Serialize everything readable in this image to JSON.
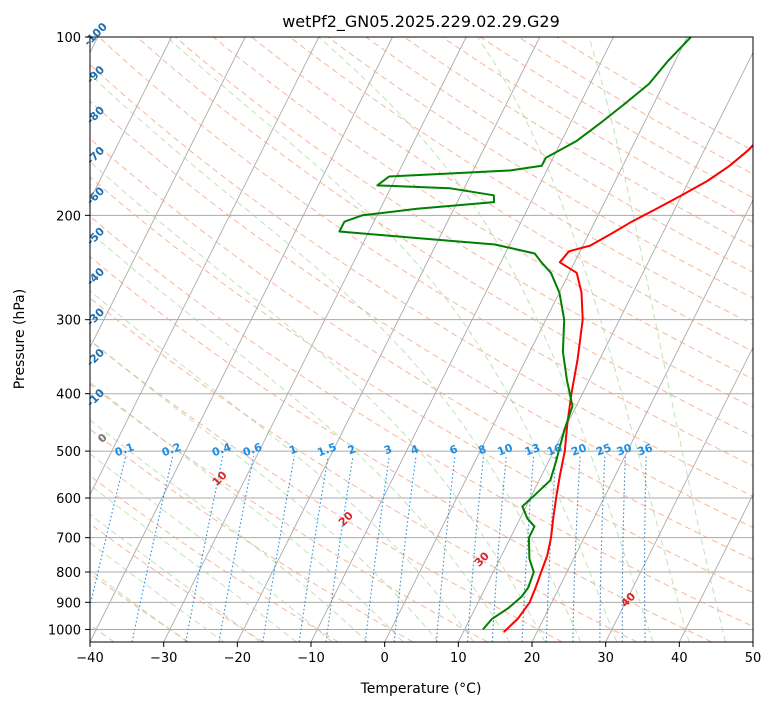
{
  "chart_data": {
    "type": "line",
    "title": "wetPf2_GN05.2025.229.02.29.G29",
    "xlabel": "Temperature (°C)",
    "ylabel": "Pressure (hPa)",
    "xlim": [
      -40,
      50
    ],
    "ylim": [
      1050,
      100
    ],
    "y_scale": "log",
    "grid": true,
    "x_ticks": [
      "−40",
      "−30",
      "−20",
      "−10",
      "0",
      "10",
      "20",
      "30",
      "40",
      "50"
    ],
    "y_ticks": [
      "100",
      "200",
      "300",
      "400",
      "500",
      "600",
      "700",
      "800",
      "900",
      "1000"
    ],
    "series": [
      {
        "color": "#ff0000",
        "role": "temperature",
        "points": [
          [
            15.5,
            1010
          ],
          [
            16.5,
            960
          ],
          [
            17,
            900
          ],
          [
            16.8,
            850
          ],
          [
            16.5,
            800
          ],
          [
            16.2,
            750
          ],
          [
            15.5,
            700
          ],
          [
            14.5,
            650
          ],
          [
            13.5,
            600
          ],
          [
            12.5,
            550
          ],
          [
            11.5,
            500
          ],
          [
            10,
            450
          ],
          [
            8.5,
            400
          ],
          [
            7,
            350
          ],
          [
            5,
            300
          ],
          [
            3,
            270
          ],
          [
            1,
            250
          ],
          [
            -2,
            240
          ],
          [
            -1.5,
            230
          ],
          [
            1,
            225
          ],
          [
            3,
            215
          ],
          [
            5,
            205
          ],
          [
            7.5,
            195
          ],
          [
            10,
            185
          ],
          [
            12.5,
            175
          ],
          [
            14.5,
            165
          ],
          [
            16,
            155
          ],
          [
            17,
            145
          ],
          [
            18.5,
            135
          ],
          [
            20.5,
            125
          ],
          [
            22.5,
            115
          ],
          [
            25,
            105
          ],
          [
            27,
            100
          ]
        ]
      },
      {
        "color": "#008000",
        "role": "dewpoint",
        "points": [
          [
            12.5,
            1000
          ],
          [
            13,
            960
          ],
          [
            14.5,
            920
          ],
          [
            15.5,
            880
          ],
          [
            15.8,
            850
          ],
          [
            15.5,
            800
          ],
          [
            14,
            760
          ],
          [
            12.5,
            700
          ],
          [
            12.5,
            670
          ],
          [
            11,
            650
          ],
          [
            9.5,
            620
          ],
          [
            10.5,
            590
          ],
          [
            11.5,
            560
          ],
          [
            11,
            520
          ],
          [
            10.5,
            490
          ],
          [
            10,
            460
          ],
          [
            9.5,
            420
          ],
          [
            7,
            380
          ],
          [
            4.5,
            340
          ],
          [
            2.5,
            300
          ],
          [
            0,
            270
          ],
          [
            -2.5,
            250
          ],
          [
            -4.5,
            240
          ],
          [
            -6,
            232
          ],
          [
            -12,
            224
          ],
          [
            -24,
            218
          ],
          [
            -34,
            213
          ],
          [
            -34,
            205
          ],
          [
            -32,
            200
          ],
          [
            -25,
            195
          ],
          [
            -15,
            190
          ],
          [
            -15.5,
            185
          ],
          [
            -22,
            180
          ],
          [
            -32,
            178
          ],
          [
            -31,
            172
          ],
          [
            -23,
            170
          ],
          [
            -15,
            168
          ],
          [
            -11,
            165
          ],
          [
            -11,
            160
          ],
          [
            -8,
            150
          ],
          [
            -6,
            140
          ],
          [
            -4,
            130
          ],
          [
            -2,
            120
          ],
          [
            -1,
            110
          ],
          [
            0.5,
            100
          ]
        ]
      }
    ],
    "dry_adiabat_labels": [
      "-100",
      "-90",
      "-80",
      "-70",
      "-60",
      "-50",
      "-40",
      "-30",
      "-20",
      "-10",
      "0",
      "10",
      "20",
      "30",
      "40"
    ],
    "mixing_ratio_labels": [
      "0.1",
      "0.2",
      "0.4",
      "0.6",
      "1",
      "1.5",
      "2",
      "3",
      "4",
      "6",
      "8",
      "10",
      "13",
      "16",
      "20",
      "25",
      "30",
      "36"
    ],
    "colors": {
      "isotherm": "#aaaaaa",
      "dry_adiabat": "#f4a582",
      "moist_adiabat": "#a6d49a",
      "mixing_ratio": "#1f8de0",
      "dry_label_cold": "#1f6fb3",
      "dry_label_warm": "#d62728",
      "dry_label_zero": "#777777"
    }
  }
}
